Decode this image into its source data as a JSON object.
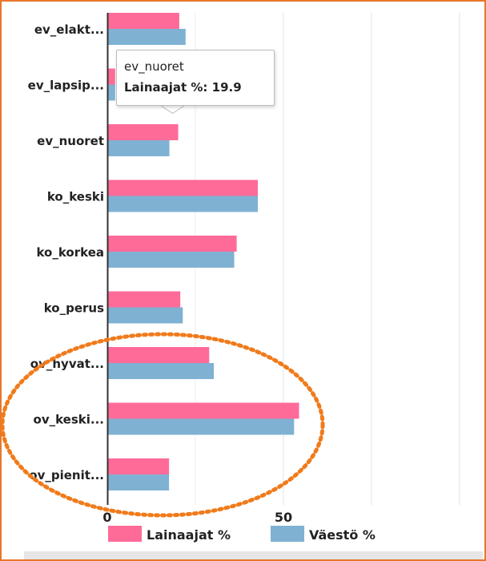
{
  "colors": {
    "frame": "#e8762b",
    "series_lainaajat": "#ff6b98",
    "series_vaesto": "#7fb1d3",
    "annotation": "#f07b1b"
  },
  "tooltip": {
    "title": "ev_nuoret",
    "label": "Lainaajat %:",
    "value": "19.9"
  },
  "annotation": {
    "shape": "dashed-ellipse",
    "highlights": [
      "ov_hyvat...",
      "ov_keski...",
      "ov_pienit..."
    ]
  },
  "chart_data": {
    "type": "bar",
    "orientation": "horizontal",
    "categories": [
      "ev_elakt...",
      "ev_lapsip...",
      "ev_nuoret",
      "ko_keski",
      "ko_korkea",
      "ko_perus",
      "ov_hyvat...",
      "ov_keski...",
      "ov_pienit..."
    ],
    "series": [
      {
        "name": "Lainaajat %",
        "values": [
          20.2,
          2,
          19.9,
          42.5,
          36.5,
          20.5,
          28.7,
          54.2,
          17.3
        ]
      },
      {
        "name": "Väestö %",
        "values": [
          22.0,
          2,
          17.4,
          42.5,
          35.8,
          21.2,
          30.0,
          52.8,
          17.3
        ]
      }
    ],
    "x_ticks": [
      "0",
      "50"
    ],
    "xlim": [
      0,
      100
    ],
    "legend": {
      "placement": "bottom"
    },
    "grid": true
  }
}
